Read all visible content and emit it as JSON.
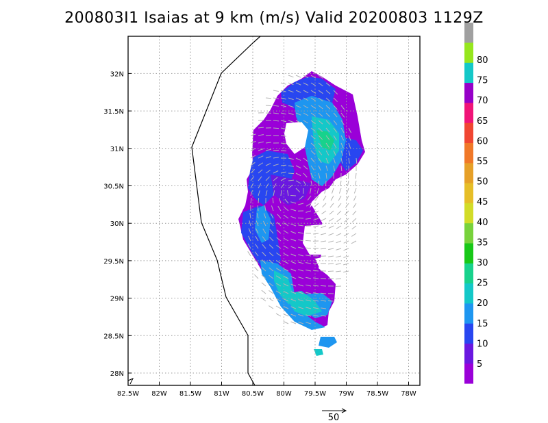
{
  "title": "200803I1 Isaias at 9 km (m/s) Valid 20200803 1129Z",
  "lon_labels": [
    "82.5W",
    "82W",
    "81.5W",
    "81W",
    "80.5W",
    "80W",
    "79.5W",
    "79W",
    "78.5W",
    "78W"
  ],
  "lat_labels": [
    "28N",
    "28.5N",
    "29N",
    "29.5N",
    "30N",
    "30.5N",
    "31N",
    "31.5N",
    "32N"
  ],
  "colorbar": {
    "labels": [
      "5",
      "10",
      "15",
      "20",
      "25",
      "30",
      "35",
      "40",
      "45",
      "50",
      "55",
      "60",
      "65",
      "70",
      "75",
      "80"
    ],
    "colors": [
      "#9a00d8",
      "#6a18e0",
      "#2846f0",
      "#1e96f0",
      "#14c8c8",
      "#18d28c",
      "#18c818",
      "#78d23c",
      "#d2dc28",
      "#e6be28",
      "#e6a028",
      "#f07828",
      "#f04632",
      "#f01478",
      "#9600c8",
      "#14c8c8",
      "#96e61e",
      "#a0a0a0"
    ]
  },
  "reference_vector": {
    "label": "50"
  }
}
